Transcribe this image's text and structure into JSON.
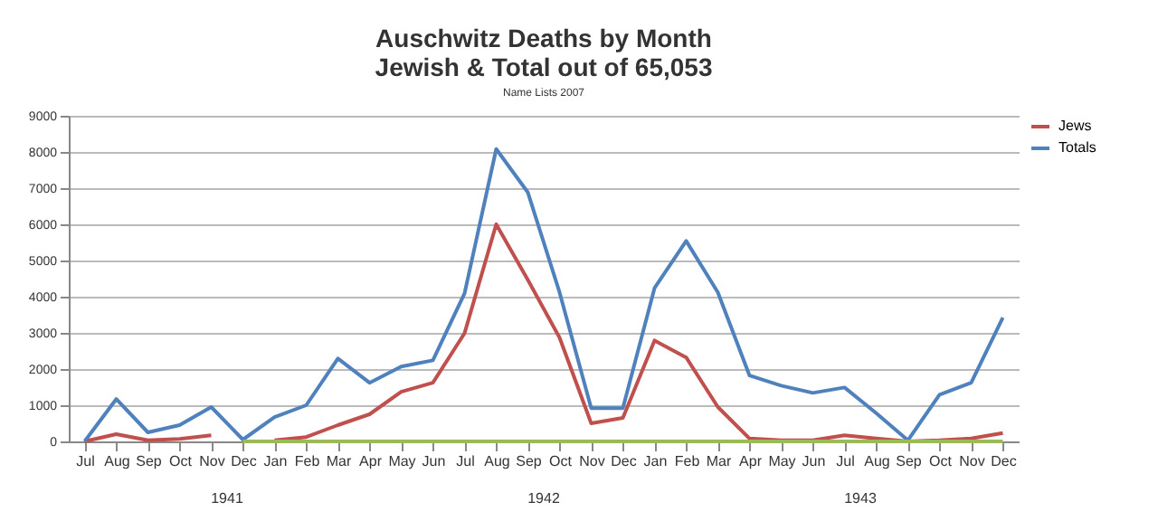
{
  "chart_data": {
    "type": "line",
    "title": [
      "Auschwitz Deaths by Month",
      "Jewish & Total out of 65,053"
    ],
    "subtitle": "Name Lists 2007",
    "categories": [
      "Jul",
      "Aug",
      "Sep",
      "Oct",
      "Nov",
      "Dec",
      "Jan",
      "Feb",
      "Mar",
      "Apr",
      "May",
      "Jun",
      "Jul",
      "Aug",
      "Sep",
      "Oct",
      "Nov",
      "Dec",
      "Jan",
      "Feb",
      "Mar",
      "Apr",
      "May",
      "Jun",
      "Jul",
      "Aug",
      "Sep",
      "Oct",
      "Nov",
      "Dec"
    ],
    "series": [
      {
        "name": "Jews",
        "color": "#c0504d",
        "values": [
          0,
          200,
          30,
          70,
          170,
          null,
          30,
          120,
          450,
          750,
          1370,
          1620,
          2990,
          6000,
          4460,
          2870,
          500,
          650,
          2790,
          2320,
          950,
          80,
          30,
          30,
          170,
          80,
          0,
          30,
          80,
          230
        ]
      },
      {
        "name": "Totals",
        "color": "#4f81bd",
        "values": [
          0,
          1170,
          250,
          450,
          950,
          50,
          670,
          1000,
          2290,
          1620,
          2070,
          2240,
          4090,
          8080,
          6880,
          4120,
          920,
          920,
          4240,
          5540,
          4120,
          1820,
          1540,
          1340,
          1490,
          780,
          30,
          1290,
          1620,
          3420
        ]
      },
      {
        "color": "#9bbb59",
        "values": [
          null,
          null,
          null,
          null,
          null,
          0,
          0,
          0,
          0,
          0,
          0,
          0,
          0,
          0,
          0,
          0,
          0,
          0,
          0,
          0,
          0,
          0,
          0,
          0,
          0,
          0,
          0,
          0,
          0,
          0
        ]
      }
    ],
    "annotations": [
      "1941",
      "1942",
      "1943"
    ],
    "ylim": [
      0,
      9000
    ],
    "yticks": [
      0,
      1000,
      2000,
      3000,
      4000,
      5000,
      6000,
      7000,
      8000,
      9000
    ],
    "grid": "y",
    "legend": "right",
    "marker": "none",
    "line_style": "solid"
  }
}
